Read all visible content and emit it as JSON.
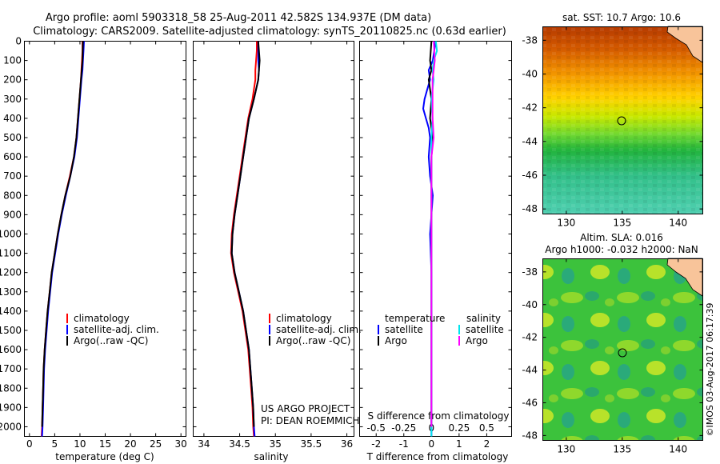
{
  "header": {
    "line1": "Argo profile: aoml 5903318_58 25-Aug-2011 42.582S 134.937E (DM data)",
    "line2": "Climatology: CARS2009. Satellite-adjusted climatology: synTS_20110825.nc (0.63d earlier)"
  },
  "watermark": "©IMOS 03-Aug-2017 06:17:39",
  "colors": {
    "climatology": "#ff0000",
    "satellite": "#0000ff",
    "argo": "#000000",
    "sal_satellite": "#00e5ee",
    "sal_argo": "#ff00ff"
  },
  "panels": {
    "temperature": {
      "xlabel": "temperature (deg C)",
      "xticks": [
        "0",
        "5",
        "10",
        "15",
        "20",
        "25",
        "30"
      ],
      "legend": [
        "climatology",
        "satellite-adj. clim.",
        "Argo(..raw -QC)"
      ]
    },
    "salinity": {
      "xlabel": "salinity",
      "xticks": [
        "34",
        "34.5",
        "35",
        "35.5",
        "36"
      ],
      "legend": [
        "climatology",
        "satellite-adj. clim.",
        "Argo(..raw -QC)"
      ],
      "note1": "US ARGO PROJECT",
      "note2": "PI: DEAN ROEMMICH"
    },
    "difference": {
      "xlabel": "T difference from climatology",
      "xlabel_top": "S difference from climatology",
      "xticks_T": [
        "-2",
        "-1",
        "0",
        "1",
        "2"
      ],
      "xticks_S": [
        "-0.5",
        "-0.25",
        "0",
        "0.25",
        "0.5"
      ],
      "legend_temp_title": "temperature",
      "legend_sal_title": "salinity",
      "legend_temp": [
        "satellite",
        "Argo"
      ],
      "legend_sal": [
        "satellite",
        "Argo"
      ]
    },
    "depth_ticks": [
      "0",
      "100",
      "200",
      "300",
      "400",
      "500",
      "600",
      "700",
      "800",
      "900",
      "1000",
      "1100",
      "1200",
      "1300",
      "1400",
      "1500",
      "1600",
      "1700",
      "1800",
      "1900",
      "2000"
    ]
  },
  "maps": {
    "sst": {
      "title": "sat. SST: 10.7  Argo: 10.6",
      "yticks": [
        "-38",
        "-40",
        "-42",
        "-44",
        "-46",
        "-48"
      ],
      "xticks": [
        "130",
        "135",
        "140"
      ]
    },
    "sla": {
      "title1": "Altim. SLA: 0.016",
      "title2": "Argo h1000: -0.032 h2000: NaN",
      "yticks": [
        "-38",
        "-40",
        "-42",
        "-44",
        "-46",
        "-48"
      ],
      "xticks": [
        "130",
        "135",
        "140"
      ]
    }
  },
  "chart_data": [
    {
      "type": "line",
      "xlabel": "temperature (deg C)",
      "ylabel": "",
      "xlim": [
        -1,
        31
      ],
      "ylim": [
        2050,
        0
      ],
      "series": [
        {
          "name": "climatology",
          "depth": [
            0,
            50,
            100,
            150,
            200,
            300,
            400,
            500,
            600,
            700,
            800,
            900,
            1000,
            1100,
            1200,
            1300,
            1400,
            1500,
            1600,
            1700,
            1800,
            1900,
            2000,
            2050
          ],
          "values": [
            10.5,
            10.5,
            10.4,
            10.3,
            10.2,
            9.9,
            9.6,
            9.3,
            8.8,
            8.0,
            7.1,
            6.3,
            5.6,
            5.0,
            4.4,
            4.0,
            3.6,
            3.3,
            3.0,
            2.8,
            2.7,
            2.6,
            2.5,
            2.4
          ]
        },
        {
          "name": "satellite-adj. clim.",
          "depth": [
            0,
            50,
            100,
            150,
            200,
            300,
            400,
            500,
            600,
            700,
            800,
            900,
            1000,
            1100,
            1200,
            1300,
            1400,
            1500,
            1600,
            1700,
            1800,
            1900,
            2000,
            2050
          ],
          "values": [
            10.8,
            10.7,
            10.6,
            10.5,
            10.3,
            10.0,
            9.7,
            9.4,
            8.9,
            8.1,
            7.2,
            6.4,
            5.7,
            5.1,
            4.5,
            4.1,
            3.7,
            3.4,
            3.1,
            2.9,
            2.8,
            2.7,
            2.6,
            2.5
          ]
        },
        {
          "name": "Argo(..raw -QC)",
          "depth": [
            0,
            100,
            200,
            300,
            400,
            500,
            600,
            700,
            800,
            900,
            1000,
            1100,
            1200,
            1300,
            1400,
            1500,
            1600,
            1700,
            1800,
            1900,
            2000
          ],
          "values": [
            10.6,
            10.5,
            10.2,
            9.9,
            9.6,
            9.3,
            8.8,
            8.1,
            7.1,
            6.3,
            5.6,
            5.0,
            4.4,
            4.0,
            3.6,
            3.3,
            3.0,
            2.8,
            2.7,
            2.6,
            2.5
          ]
        }
      ]
    },
    {
      "type": "line",
      "xlabel": "salinity",
      "ylabel": "",
      "xlim": [
        33.85,
        36.1
      ],
      "ylim": [
        2050,
        0
      ],
      "series": [
        {
          "name": "climatology",
          "depth": [
            0,
            50,
            100,
            150,
            200,
            300,
            400,
            500,
            600,
            700,
            800,
            900,
            1000,
            1100,
            1200,
            1300,
            1400,
            1500,
            1600,
            1700,
            1800,
            1900,
            2000,
            2050
          ],
          "values": [
            34.74,
            34.74,
            34.73,
            34.72,
            34.72,
            34.68,
            34.62,
            34.58,
            34.54,
            34.5,
            34.46,
            34.42,
            34.39,
            34.38,
            34.42,
            34.48,
            34.54,
            34.58,
            34.62,
            34.64,
            34.66,
            34.68,
            34.69,
            34.7
          ]
        },
        {
          "name": "satellite-adj. clim.",
          "depth": [
            0,
            50,
            100,
            150,
            200,
            300,
            400,
            500,
            600,
            700,
            800,
            900,
            1000,
            1100,
            1200,
            1300,
            1400,
            1500,
            1600,
            1700,
            1800,
            1900,
            2000,
            2050
          ],
          "values": [
            34.76,
            34.76,
            34.76,
            34.77,
            34.76,
            34.7,
            34.63,
            34.59,
            34.55,
            34.51,
            34.47,
            34.43,
            34.4,
            34.39,
            34.43,
            34.49,
            34.55,
            34.59,
            34.63,
            34.65,
            34.67,
            34.69,
            34.7,
            34.71
          ]
        },
        {
          "name": "Argo(..raw -QC)",
          "depth": [
            0,
            100,
            200,
            300,
            400,
            500,
            600,
            700,
            800,
            900,
            1000,
            1100,
            1200,
            1300,
            1400,
            1500,
            1600,
            1700,
            1800,
            1900,
            2000
          ],
          "values": [
            34.76,
            34.78,
            34.76,
            34.7,
            34.63,
            34.59,
            34.55,
            34.51,
            34.47,
            34.43,
            34.4,
            34.39,
            34.43,
            34.49,
            34.55,
            34.59,
            34.63,
            34.65,
            34.67,
            34.69,
            34.7
          ]
        }
      ]
    },
    {
      "type": "line",
      "xlabel": "T difference from climatology",
      "ylabel": "",
      "xlim": [
        -2.6,
        2.9
      ],
      "ylim": [
        2050,
        0
      ],
      "series": [
        {
          "name": "temperature satellite",
          "depth": [
            0,
            50,
            100,
            150,
            200,
            250,
            300,
            350,
            400,
            450,
            500,
            600,
            700,
            800,
            900,
            1000,
            1200,
            1400,
            1600,
            1800,
            2000,
            2050
          ],
          "values": [
            0.15,
            0.1,
            0.05,
            -0.1,
            -0.05,
            -0.15,
            -0.25,
            -0.3,
            -0.2,
            -0.1,
            -0.05,
            -0.1,
            -0.05,
            0.05,
            0.0,
            -0.05,
            0.0,
            0.0,
            0.0,
            0.0,
            0.0,
            0.0
          ]
        },
        {
          "name": "temperature Argo",
          "depth": [
            0,
            100,
            150,
            200,
            300,
            400,
            500,
            600,
            700,
            800,
            1000,
            1200,
            1400,
            1600,
            1800,
            2000
          ],
          "values": [
            0.0,
            -0.05,
            0.0,
            -0.1,
            0.0,
            -0.05,
            0.05,
            0.0,
            0.0,
            0.0,
            0.0,
            0.0,
            0.0,
            0.0,
            0.0,
            0.0
          ]
        },
        {
          "name": "salinity satellite",
          "depth": [
            0,
            50,
            100,
            150,
            200,
            300,
            400,
            500,
            600,
            700,
            800,
            1000,
            1200,
            1400,
            1600,
            1800,
            2000,
            2050
          ],
          "values": [
            0.04,
            0.05,
            0.02,
            0.01,
            0.02,
            0.0,
            0.01,
            0.0,
            0.0,
            0.0,
            0.0,
            0.0,
            0.0,
            0.0,
            0.0,
            0.0,
            0.0,
            0.0
          ]
        },
        {
          "name": "salinity Argo",
          "depth": [
            0,
            100,
            200,
            300,
            400,
            500,
            600,
            700,
            800,
            1000,
            1200,
            1400,
            1600,
            1800,
            2000
          ],
          "values": [
            0.02,
            0.03,
            0.01,
            0.01,
            0.01,
            0.02,
            0.0,
            0.0,
            0.0,
            0.0,
            0.0,
            0.0,
            0.0,
            0.0,
            0.0
          ]
        }
      ]
    }
  ]
}
